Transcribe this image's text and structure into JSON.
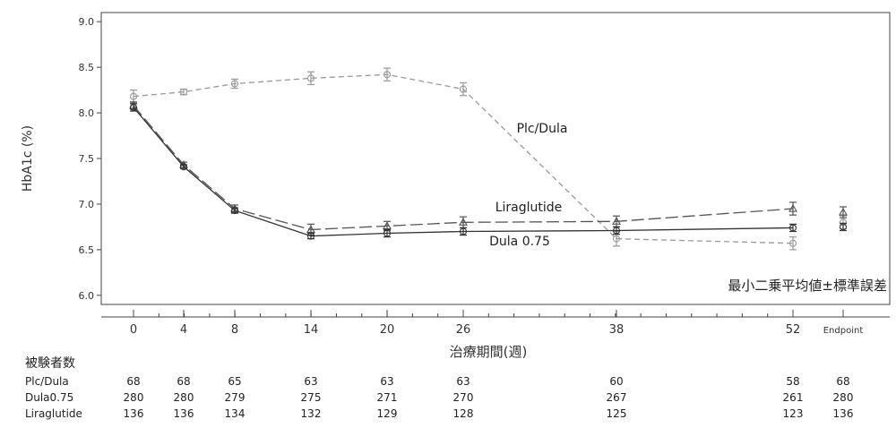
{
  "chart_data": {
    "type": "line",
    "ylabel": "HbA1c (%)",
    "xlabel": "治療期間(週)",
    "annotation": "最小二乗平均値±標準誤差",
    "ylim": [
      5.9,
      9.1
    ],
    "y_ticks": [
      "6.0",
      "6.5",
      "7.0",
      "7.5",
      "8.0",
      "8.5",
      "9.0"
    ],
    "x_ticks": [
      "0",
      "4",
      "8",
      "14",
      "20",
      "26",
      "38",
      "52",
      "Endpoint"
    ],
    "x_values": [
      0,
      4,
      8,
      14,
      20,
      26,
      38,
      52
    ],
    "series": [
      {
        "name": "Plc/Dula",
        "color": "#9a9a9a",
        "dash": "dashed",
        "marker": "circle",
        "values": [
          8.18,
          8.23,
          8.32,
          8.38,
          8.42,
          8.26,
          6.62,
          6.57
        ],
        "errors": [
          0.07,
          0.03,
          0.05,
          0.07,
          0.07,
          0.07,
          0.08,
          0.07
        ],
        "endpoint": 6.8,
        "endpoint_error": 0.07
      },
      {
        "name": "Liraglutide",
        "color": "#555555",
        "dash": "longdash",
        "marker": "triangle",
        "values": [
          8.08,
          7.43,
          6.95,
          6.72,
          6.76,
          6.8,
          6.81,
          6.95
        ],
        "errors": [
          0.04,
          0.03,
          0.04,
          0.06,
          0.05,
          0.06,
          0.06,
          0.07
        ],
        "endpoint": 6.91,
        "endpoint_error": 0.06
      },
      {
        "name": "Dula 0.75",
        "color": "#333333",
        "dash": "solid",
        "marker": "circle",
        "values": [
          8.06,
          7.41,
          6.93,
          6.65,
          6.68,
          6.7,
          6.71,
          6.74
        ],
        "errors": [
          0.04,
          0.02,
          0.03,
          0.03,
          0.04,
          0.04,
          0.04,
          0.04
        ],
        "endpoint": 6.75,
        "endpoint_error": 0.04
      }
    ],
    "subjects": {
      "title": "被験者数",
      "rows": [
        {
          "label": "Plc/Dula",
          "values": [
            "68",
            "68",
            "65",
            "63",
            "63",
            "63",
            "60",
            "58",
            "68"
          ]
        },
        {
          "label": "Dula0.75",
          "values": [
            "280",
            "280",
            "279",
            "275",
            "271",
            "270",
            "267",
            "261",
            "280"
          ]
        },
        {
          "label": "Liraglutide",
          "values": [
            "136",
            "136",
            "134",
            "132",
            "129",
            "128",
            "125",
            "123",
            "136"
          ]
        }
      ]
    }
  }
}
